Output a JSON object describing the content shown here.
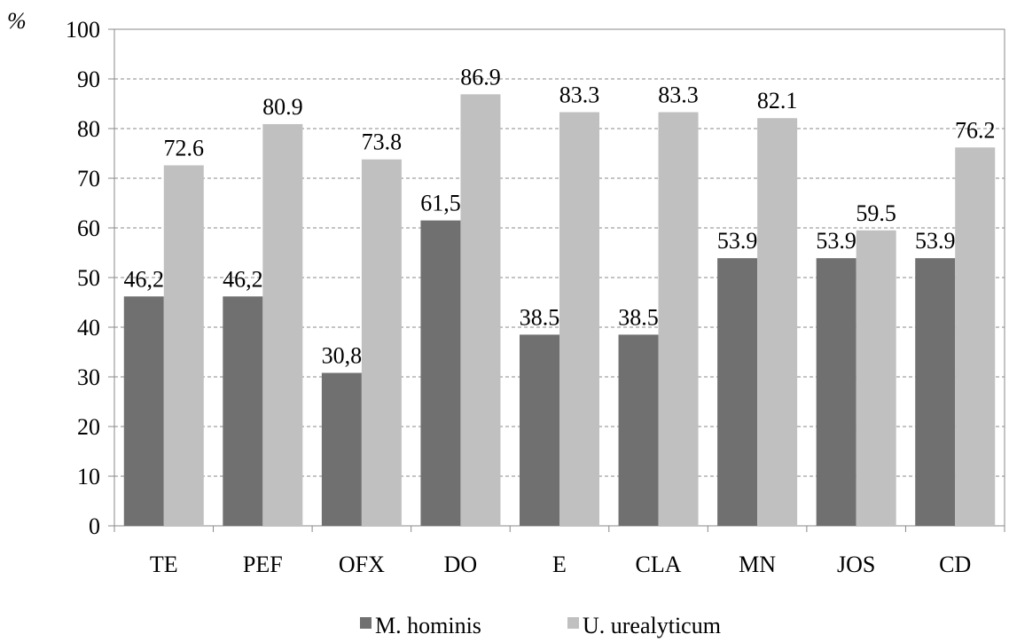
{
  "chart_data": {
    "type": "bar",
    "ylabel": "%",
    "ylim": [
      0,
      100
    ],
    "yticks": [
      0,
      10,
      20,
      30,
      40,
      50,
      60,
      70,
      80,
      90,
      100
    ],
    "grid": "horizontal-dashed",
    "legend_position": "bottom",
    "categories": [
      "TE",
      "PEF",
      "OFX",
      "DO",
      "E",
      "CLA",
      "MN",
      "JOS",
      "CD"
    ],
    "series": [
      {
        "name": "M. hominis",
        "color": "#707070",
        "values": [
          46.2,
          46.2,
          30.8,
          61.5,
          38.5,
          38.5,
          53.9,
          53.9,
          53.9
        ],
        "labels": [
          "46,2",
          "46,2",
          "30,8",
          "61,5",
          "38.5",
          "38.5",
          "53.9",
          "53.9",
          "53.9"
        ]
      },
      {
        "name": "U. urealyticum",
        "color": "#c0c0c0",
        "values": [
          72.6,
          80.9,
          73.8,
          86.9,
          83.3,
          83.3,
          82.1,
          59.5,
          76.2
        ],
        "labels": [
          "72.6",
          "80.9",
          "73.8",
          "86.9",
          "83.3",
          "83.3",
          "82.1",
          "59.5",
          "76.2"
        ]
      }
    ]
  }
}
